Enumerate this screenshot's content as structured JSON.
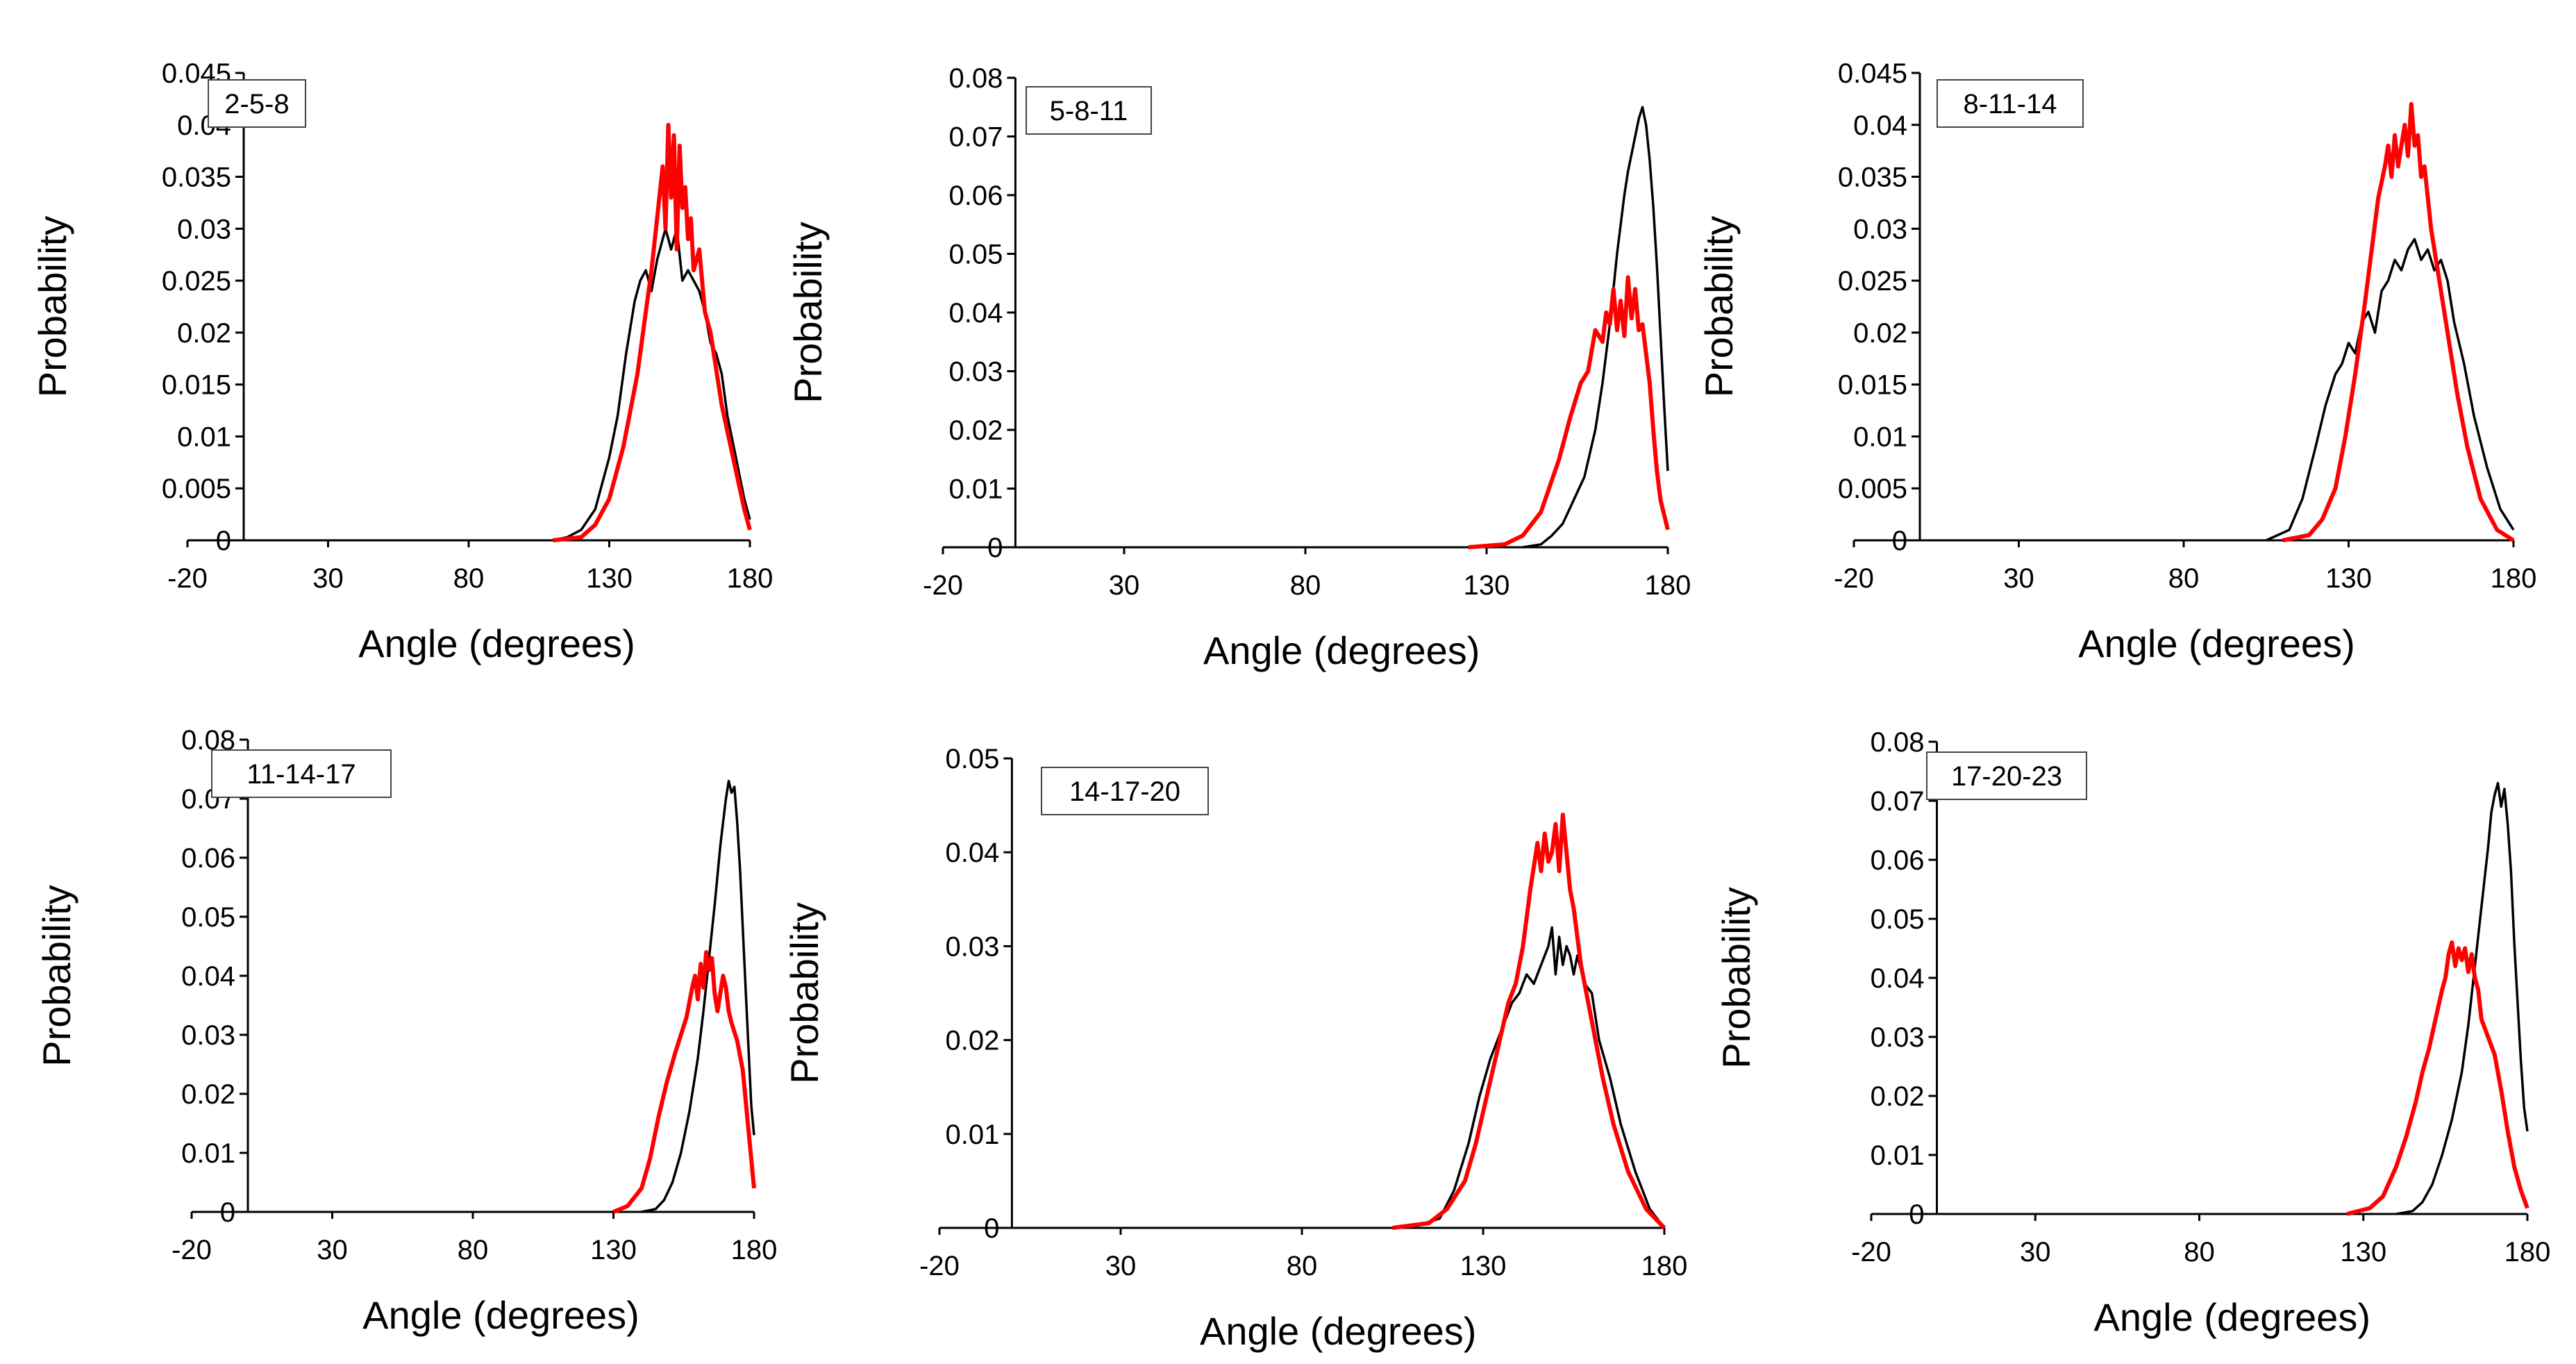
{
  "figure": {
    "background": "#ffffff",
    "series_colors": {
      "red": "#ff0000",
      "black": "#000000"
    }
  },
  "chart_data": [
    {
      "type": "line",
      "panel_label": "2-5-8",
      "xlabel": "Angle (degrees)",
      "ylabel": "Probability",
      "xlim": [
        -20,
        180
      ],
      "x_ticks": [
        "-20",
        "30",
        "80",
        "130",
        "180"
      ],
      "ylim": [
        0,
        0.045
      ],
      "y_ticks": [
        "0",
        "0.005",
        "0.01",
        "0.015",
        "0.02",
        "0.025",
        "0.03",
        "0.035",
        "0.04",
        "0.045"
      ],
      "series": [
        {
          "name": "red",
          "color": "#ff0000",
          "x": [
            110,
            120,
            125,
            130,
            135,
            140,
            143,
            145,
            147,
            149,
            150,
            151,
            152,
            153,
            154,
            155,
            156,
            157,
            158,
            159,
            160,
            162,
            164,
            166,
            170,
            174,
            178,
            180
          ],
          "y": [
            0,
            0.0003,
            0.0015,
            0.004,
            0.009,
            0.016,
            0.022,
            0.026,
            0.031,
            0.036,
            0.03,
            0.04,
            0.033,
            0.039,
            0.028,
            0.038,
            0.032,
            0.034,
            0.029,
            0.031,
            0.026,
            0.028,
            0.022,
            0.02,
            0.013,
            0.008,
            0.003,
            0.001
          ]
        },
        {
          "name": "black",
          "color": "#000000",
          "x": [
            110,
            115,
            120,
            125,
            130,
            133,
            136,
            139,
            141,
            143,
            145,
            147,
            149,
            150,
            152,
            154,
            156,
            158,
            160,
            162,
            164,
            166,
            168,
            170,
            172,
            175,
            178,
            180
          ],
          "y": [
            0,
            0.0003,
            0.001,
            0.003,
            0.008,
            0.012,
            0.018,
            0.023,
            0.025,
            0.026,
            0.024,
            0.027,
            0.029,
            0.03,
            0.028,
            0.03,
            0.025,
            0.026,
            0.025,
            0.024,
            0.022,
            0.019,
            0.018,
            0.016,
            0.012,
            0.008,
            0.004,
            0.002
          ]
        }
      ]
    },
    {
      "type": "line",
      "panel_label": "5-8-11",
      "xlabel": "Angle (degrees)",
      "ylabel": "Probability",
      "xlim": [
        -20,
        180
      ],
      "x_ticks": [
        "-20",
        "30",
        "80",
        "130",
        "180"
      ],
      "ylim": [
        0,
        0.08
      ],
      "y_ticks": [
        "0",
        "0.01",
        "0.02",
        "0.03",
        "0.04",
        "0.05",
        "0.06",
        "0.07",
        "0.08"
      ],
      "series": [
        {
          "name": "red",
          "color": "#ff0000",
          "x": [
            125,
            135,
            140,
            145,
            150,
            153,
            156,
            158,
            160,
            162,
            163,
            164,
            165,
            166,
            167,
            168,
            169,
            170,
            171,
            172,
            173,
            174,
            175,
            176,
            177,
            178,
            180
          ],
          "y": [
            0,
            0.0005,
            0.002,
            0.006,
            0.015,
            0.022,
            0.028,
            0.03,
            0.037,
            0.035,
            0.04,
            0.038,
            0.044,
            0.037,
            0.042,
            0.036,
            0.046,
            0.039,
            0.044,
            0.037,
            0.038,
            0.033,
            0.028,
            0.02,
            0.013,
            0.008,
            0.003
          ]
        },
        {
          "name": "black",
          "color": "#000000",
          "x": [
            140,
            145,
            148,
            151,
            154,
            157,
            160,
            162,
            164,
            166,
            168,
            169,
            170,
            171,
            172,
            173,
            174,
            175,
            176,
            177,
            178,
            179,
            180
          ],
          "y": [
            0,
            0.0005,
            0.002,
            0.004,
            0.008,
            0.012,
            0.02,
            0.028,
            0.038,
            0.05,
            0.06,
            0.064,
            0.067,
            0.07,
            0.073,
            0.075,
            0.072,
            0.066,
            0.058,
            0.048,
            0.036,
            0.024,
            0.013
          ]
        }
      ]
    },
    {
      "type": "line",
      "panel_label": "8-11-14",
      "xlabel": "Angle (degrees)",
      "ylabel": "Probability",
      "xlim": [
        -20,
        180
      ],
      "x_ticks": [
        "-20",
        "30",
        "80",
        "130",
        "180"
      ],
      "ylim": [
        0,
        0.045
      ],
      "y_ticks": [
        "0",
        "0.005",
        "0.01",
        "0.015",
        "0.02",
        "0.025",
        "0.03",
        "0.035",
        "0.04",
        "0.045"
      ],
      "series": [
        {
          "name": "red",
          "color": "#ff0000",
          "x": [
            110,
            118,
            122,
            126,
            129,
            132,
            135,
            137,
            139,
            141,
            142,
            143,
            144,
            145,
            146,
            147,
            148,
            149,
            150,
            151,
            152,
            153,
            155,
            157,
            159,
            161,
            163,
            166,
            170,
            175,
            180
          ],
          "y": [
            0,
            0.0005,
            0.002,
            0.005,
            0.01,
            0.016,
            0.023,
            0.028,
            0.033,
            0.036,
            0.038,
            0.035,
            0.039,
            0.036,
            0.038,
            0.04,
            0.037,
            0.042,
            0.038,
            0.039,
            0.035,
            0.036,
            0.03,
            0.026,
            0.022,
            0.018,
            0.014,
            0.009,
            0.004,
            0.001,
            0
          ]
        },
        {
          "name": "black",
          "color": "#000000",
          "x": [
            105,
            112,
            116,
            120,
            123,
            126,
            128,
            130,
            132,
            134,
            136,
            138,
            140,
            142,
            144,
            146,
            148,
            150,
            152,
            154,
            156,
            158,
            160,
            162,
            165,
            168,
            172,
            176,
            180
          ],
          "y": [
            0,
            0.001,
            0.004,
            0.009,
            0.013,
            0.016,
            0.017,
            0.019,
            0.018,
            0.021,
            0.022,
            0.02,
            0.024,
            0.025,
            0.027,
            0.026,
            0.028,
            0.029,
            0.027,
            0.028,
            0.026,
            0.027,
            0.025,
            0.021,
            0.017,
            0.012,
            0.007,
            0.003,
            0.001
          ]
        }
      ]
    },
    {
      "type": "line",
      "panel_label": "11-14-17",
      "xlabel": "Angle (degrees)",
      "ylabel": "Probability",
      "xlim": [
        -20,
        180
      ],
      "x_ticks": [
        "-20",
        "30",
        "80",
        "130",
        "180"
      ],
      "ylim": [
        0,
        0.08
      ],
      "y_ticks": [
        "0",
        "0.01",
        "0.02",
        "0.03",
        "0.04",
        "0.05",
        "0.06",
        "0.07",
        "0.08"
      ],
      "series": [
        {
          "name": "red",
          "color": "#ff0000",
          "x": [
            130,
            135,
            140,
            143,
            146,
            149,
            152,
            154,
            156,
            158,
            159,
            160,
            161,
            162,
            163,
            164,
            165,
            166,
            167,
            168,
            169,
            170,
            171,
            172,
            174,
            176,
            178,
            180
          ],
          "y": [
            0,
            0.001,
            0.004,
            0.009,
            0.016,
            0.022,
            0.027,
            0.03,
            0.033,
            0.038,
            0.04,
            0.036,
            0.042,
            0.038,
            0.044,
            0.041,
            0.043,
            0.037,
            0.034,
            0.037,
            0.04,
            0.038,
            0.034,
            0.032,
            0.029,
            0.024,
            0.014,
            0.004
          ]
        },
        {
          "name": "black",
          "color": "#000000",
          "x": [
            140,
            145,
            148,
            151,
            154,
            157,
            160,
            162,
            164,
            166,
            168,
            169,
            170,
            171,
            172,
            173,
            174,
            175,
            176,
            177,
            178,
            179,
            180
          ],
          "y": [
            0,
            0.0005,
            0.002,
            0.005,
            0.01,
            0.017,
            0.026,
            0.034,
            0.043,
            0.052,
            0.062,
            0.066,
            0.07,
            0.073,
            0.071,
            0.072,
            0.066,
            0.058,
            0.048,
            0.038,
            0.028,
            0.018,
            0.013
          ]
        }
      ]
    },
    {
      "type": "line",
      "panel_label": "14-17-20",
      "xlabel": "Angle (degrees)",
      "ylabel": "Probability",
      "xlim": [
        -20,
        180
      ],
      "x_ticks": [
        "-20",
        "30",
        "80",
        "130",
        "180"
      ],
      "ylim": [
        0,
        0.05
      ],
      "y_ticks": [
        "0",
        "0.01",
        "0.02",
        "0.03",
        "0.04",
        "0.05"
      ],
      "series": [
        {
          "name": "red",
          "color": "#ff0000",
          "x": [
            105,
            115,
            120,
            125,
            128,
            131,
            134,
            137,
            139,
            141,
            143,
            145,
            146,
            147,
            148,
            149,
            150,
            151,
            152,
            153,
            154,
            155,
            157,
            159,
            161,
            163,
            166,
            170,
            175,
            180
          ],
          "y": [
            0,
            0.0005,
            0.002,
            0.005,
            0.009,
            0.014,
            0.019,
            0.024,
            0.026,
            0.03,
            0.036,
            0.041,
            0.038,
            0.042,
            0.039,
            0.04,
            0.043,
            0.038,
            0.044,
            0.04,
            0.036,
            0.034,
            0.028,
            0.024,
            0.02,
            0.016,
            0.011,
            0.006,
            0.002,
            0
          ]
        },
        {
          "name": "black",
          "color": "#000000",
          "x": [
            110,
            118,
            122,
            126,
            129,
            132,
            135,
            138,
            140,
            142,
            144,
            146,
            148,
            149,
            150,
            151,
            152,
            153,
            154,
            155,
            156,
            158,
            160,
            162,
            165,
            168,
            172,
            176,
            180
          ],
          "y": [
            0,
            0.001,
            0.004,
            0.009,
            0.014,
            0.018,
            0.021,
            0.024,
            0.025,
            0.027,
            0.026,
            0.028,
            0.03,
            0.032,
            0.027,
            0.031,
            0.028,
            0.03,
            0.029,
            0.027,
            0.029,
            0.026,
            0.025,
            0.02,
            0.016,
            0.011,
            0.006,
            0.002,
            0
          ]
        }
      ]
    },
    {
      "type": "line",
      "panel_label": "17-20-23",
      "xlabel": "Angle (degrees)",
      "ylabel": "Probability",
      "xlim": [
        -20,
        180
      ],
      "x_ticks": [
        "-20",
        "30",
        "80",
        "130",
        "180"
      ],
      "ylim": [
        0,
        0.08
      ],
      "y_ticks": [
        "0",
        "0.01",
        "0.02",
        "0.03",
        "0.04",
        "0.05",
        "0.06",
        "0.07",
        "0.08"
      ],
      "series": [
        {
          "name": "red",
          "color": "#ff0000",
          "x": [
            125,
            132,
            136,
            140,
            143,
            146,
            148,
            150,
            152,
            154,
            155,
            156,
            157,
            158,
            159,
            160,
            161,
            162,
            163,
            164,
            165,
            166,
            168,
            170,
            172,
            174,
            176,
            178,
            180
          ],
          "y": [
            0,
            0.001,
            0.003,
            0.008,
            0.013,
            0.019,
            0.024,
            0.028,
            0.033,
            0.038,
            0.04,
            0.044,
            0.046,
            0.042,
            0.045,
            0.043,
            0.045,
            0.041,
            0.044,
            0.04,
            0.038,
            0.033,
            0.03,
            0.027,
            0.021,
            0.014,
            0.008,
            0.004,
            0.001
          ]
        },
        {
          "name": "black",
          "color": "#000000",
          "x": [
            140,
            145,
            148,
            151,
            154,
            157,
            160,
            162,
            164,
            166,
            168,
            169,
            170,
            171,
            172,
            173,
            174,
            175,
            176,
            177,
            178,
            179,
            180
          ],
          "y": [
            0,
            0.0005,
            0.002,
            0.005,
            0.01,
            0.016,
            0.024,
            0.032,
            0.042,
            0.052,
            0.062,
            0.068,
            0.071,
            0.073,
            0.069,
            0.072,
            0.066,
            0.058,
            0.046,
            0.036,
            0.026,
            0.018,
            0.014
          ]
        }
      ]
    }
  ]
}
